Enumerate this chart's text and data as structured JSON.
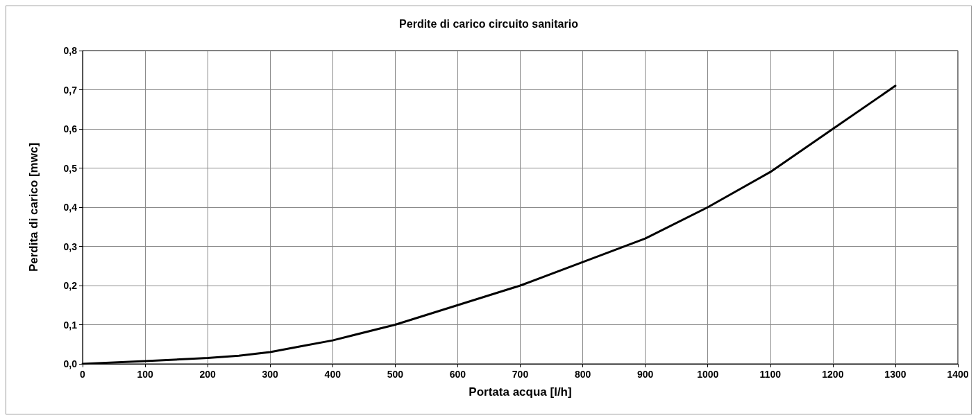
{
  "chart_data": {
    "type": "line",
    "title": "Perdite di carico circuito sanitario",
    "xlabel": "Portata acqua [l/h]",
    "ylabel": "Perdita di carico [mwc]",
    "x": [
      0,
      100,
      200,
      250,
      300,
      350,
      400,
      500,
      600,
      700,
      800,
      850,
      900,
      1000,
      1100,
      1200,
      1300
    ],
    "series": [
      {
        "color": "#000000",
        "values": [
          0.0,
          0.007,
          0.015,
          0.021,
          0.03,
          0.045,
          0.06,
          0.1,
          0.15,
          0.2,
          0.26,
          0.29,
          0.32,
          0.4,
          0.49,
          0.6,
          0.71
        ]
      }
    ],
    "xlim": [
      0,
      1400
    ],
    "xticks": [
      0,
      100,
      200,
      300,
      400,
      500,
      600,
      700,
      800,
      900,
      1000,
      1100,
      1200,
      1300,
      1400
    ],
    "ylim": [
      0,
      0.8
    ],
    "yticks": [
      {
        "value": 0,
        "label": "0,0"
      },
      {
        "value": 0.1,
        "label": "0,1"
      },
      {
        "value": 0.2,
        "label": "0,2"
      },
      {
        "value": 0.3,
        "label": "0,3"
      },
      {
        "value": 0.4,
        "label": "0,4"
      },
      {
        "value": 0.5,
        "label": "0,5"
      },
      {
        "value": 0.6,
        "label": "0,6"
      },
      {
        "value": 0.7,
        "label": "0,7"
      },
      {
        "value": 0.8,
        "label": "0,8"
      }
    ],
    "grid": true,
    "marker": "none",
    "line_style": "solid"
  }
}
